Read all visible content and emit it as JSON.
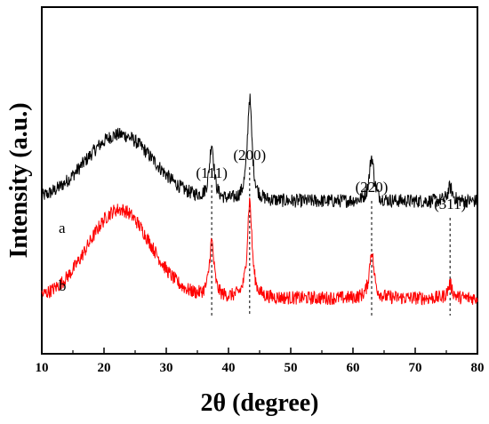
{
  "chart_data": {
    "type": "line",
    "xlabel": "2θ (degree)",
    "ylabel": "Intensity (a.u.)",
    "xlim": [
      10,
      80
    ],
    "x_ticks": [
      "10",
      "20",
      "30",
      "40",
      "50",
      "60",
      "70",
      "80"
    ],
    "y_ticks_labeled": false,
    "grid": false,
    "series": [
      {
        "name": "a",
        "color": "#000000",
        "baseline": 0.55,
        "hump": {
          "center": 22.5,
          "height": 0.24,
          "width": 5.5
        },
        "peaks": [
          {
            "pos": 37.3,
            "height": 0.2
          },
          {
            "pos": 43.4,
            "height": 0.37
          },
          {
            "pos": 63.0,
            "height": 0.16
          },
          {
            "pos": 75.6,
            "height": 0.05
          }
        ],
        "noise": 0.025
      },
      {
        "name": "b",
        "color": "#ff0000",
        "baseline": 0.2,
        "hump": {
          "center": 22.5,
          "height": 0.32,
          "width": 5.0
        },
        "peaks": [
          {
            "pos": 37.3,
            "height": 0.2
          },
          {
            "pos": 43.4,
            "height": 0.35
          },
          {
            "pos": 63.0,
            "height": 0.17
          },
          {
            "pos": 75.6,
            "height": 0.05
          }
        ],
        "noise": 0.025
      }
    ],
    "annotations": [
      {
        "label": "(111)",
        "x": 37.3
      },
      {
        "label": "(200)",
        "x": 43.4
      },
      {
        "label": "(220)",
        "x": 63.0
      },
      {
        "label": "(311)",
        "x": 75.6
      }
    ]
  }
}
